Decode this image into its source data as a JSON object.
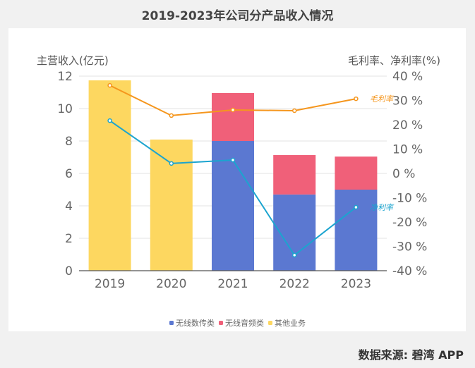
{
  "chart_data": {
    "type": "bar",
    "title": "2019-2023年公司分产品收入情况",
    "categories": [
      "2019",
      "2020",
      "2021",
      "2022",
      "2023"
    ],
    "left_axis": {
      "label": "主营收入(亿元)",
      "range": [
        0,
        12
      ],
      "ticks": [
        "0",
        "2",
        "4",
        "6",
        "8",
        "10",
        "12"
      ]
    },
    "right_axis": {
      "label": "毛利率、净利率(%)",
      "range": [
        -40,
        40
      ],
      "ticks": [
        "-40 %",
        "-30 %",
        "-20 %",
        "-10 %",
        "0 %",
        "10 %",
        "20 %",
        "30 %",
        "40 %"
      ]
    },
    "grid": true,
    "stacked": true,
    "series": [
      {
        "name": "无线数传类",
        "type": "bar",
        "color": "#5b78d1",
        "values": [
          0,
          0,
          8.0,
          4.7,
          5.0
        ]
      },
      {
        "name": "无线音频类",
        "type": "bar",
        "color": "#f06079",
        "values": [
          0,
          0,
          2.96,
          2.43,
          2.04
        ]
      },
      {
        "name": "其他业务",
        "type": "bar",
        "color": "#fdd760",
        "values": [
          11.74,
          8.09,
          0,
          0,
          0
        ]
      },
      {
        "name": "毛利率",
        "type": "line",
        "axis": "right",
        "color": "#f5961d",
        "values": [
          36.2,
          23.8,
          26.1,
          25.8,
          30.7
        ]
      },
      {
        "name": "净利率",
        "type": "line",
        "axis": "right",
        "color": "#1ba4cf",
        "values": [
          21.7,
          4.1,
          5.5,
          -33.6,
          -13.9
        ]
      }
    ],
    "line_labels": [
      "毛利率",
      "净利率"
    ],
    "legend": {
      "position": "bottom-center",
      "items": [
        "无线数传类",
        "无线音频类",
        "其他业务"
      ]
    }
  },
  "source": "数据来源: 碧湾 APP"
}
